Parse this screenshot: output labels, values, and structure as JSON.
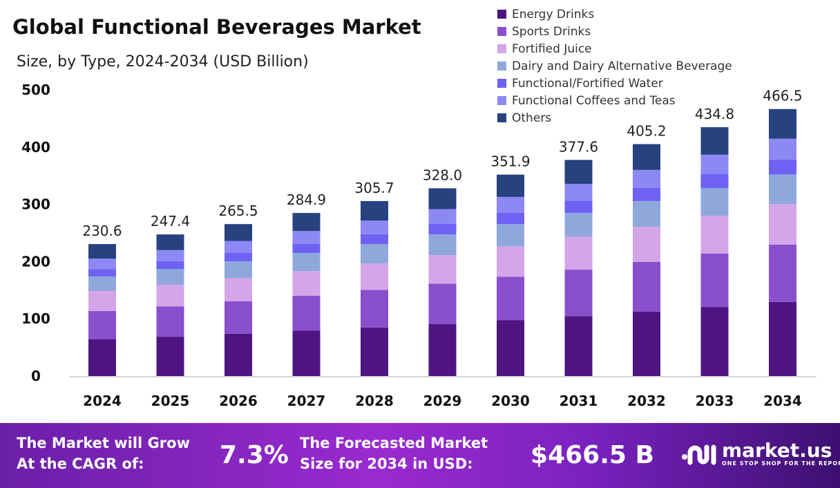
{
  "chart_data": {
    "type": "bar",
    "stacked": true,
    "title": "Global Functional Beverages Market",
    "subtitle": "Size, by Type, 2024-2034 (USD Billion)",
    "categories": [
      "2024",
      "2025",
      "2026",
      "2027",
      "2028",
      "2029",
      "2030",
      "2031",
      "2032",
      "2033",
      "2034"
    ],
    "totals": [
      "230.6",
      "247.4",
      "265.5",
      "284.9",
      "305.7",
      "328.0",
      "351.9",
      "377.6",
      "405.2",
      "434.8",
      "466.5"
    ],
    "ylim": [
      0,
      500
    ],
    "yticks": [
      "0",
      "100",
      "200",
      "300",
      "400",
      "500"
    ],
    "legend_position": "top-right",
    "grid": false,
    "series": [
      {
        "name": "Energy Drinks",
        "color": "#4e1580",
        "values": [
          64.0,
          68.7,
          73.7,
          79.1,
          84.8,
          91.0,
          97.7,
          104.8,
          112.4,
          120.7,
          129.5
        ]
      },
      {
        "name": "Sports Drinks",
        "color": "#8a4fcc",
        "values": [
          49.5,
          53.1,
          57.0,
          61.2,
          65.6,
          70.4,
          75.6,
          81.1,
          87.0,
          93.4,
          100.2
        ]
      },
      {
        "name": "Fortified Juice",
        "color": "#d4a5e8",
        "values": [
          35.0,
          37.6,
          40.3,
          43.2,
          46.4,
          49.8,
          53.4,
          57.3,
          61.5,
          66.0,
          70.8
        ]
      },
      {
        "name": "Dairy and Dairy Alternative Beverage",
        "color": "#8fa8dc",
        "values": [
          25.5,
          27.4,
          29.4,
          31.5,
          33.8,
          36.3,
          38.9,
          41.8,
          44.8,
          48.1,
          51.6
        ]
      },
      {
        "name": "Functional/Fortified Water",
        "color": "#6e62f2",
        "values": [
          13.0,
          14.0,
          15.0,
          16.1,
          17.2,
          18.5,
          19.8,
          21.3,
          22.9,
          24.5,
          26.3
        ]
      },
      {
        "name": "Functional Coffees and Teas",
        "color": "#8c88f4",
        "values": [
          18.0,
          19.3,
          20.7,
          22.3,
          23.9,
          25.6,
          27.5,
          29.5,
          31.6,
          34.0,
          36.4
        ]
      },
      {
        "name": "Others",
        "color": "#27427e",
        "values": [
          25.6,
          27.3,
          29.4,
          31.5,
          34.0,
          36.4,
          39.0,
          41.8,
          45.0,
          48.1,
          51.7
        ]
      }
    ]
  },
  "footer": {
    "cagr_label_1": "The Market will Grow",
    "cagr_label_2": "At the CAGR of:",
    "cagr_value": "7.3%",
    "forecast_label_1": "The Forecasted Market",
    "forecast_label_2": "Size for 2034 in USD:",
    "forecast_value": "$466.5 B",
    "brand": "market.us",
    "tagline": "ONE STOP SHOP FOR THE REPORTS"
  }
}
